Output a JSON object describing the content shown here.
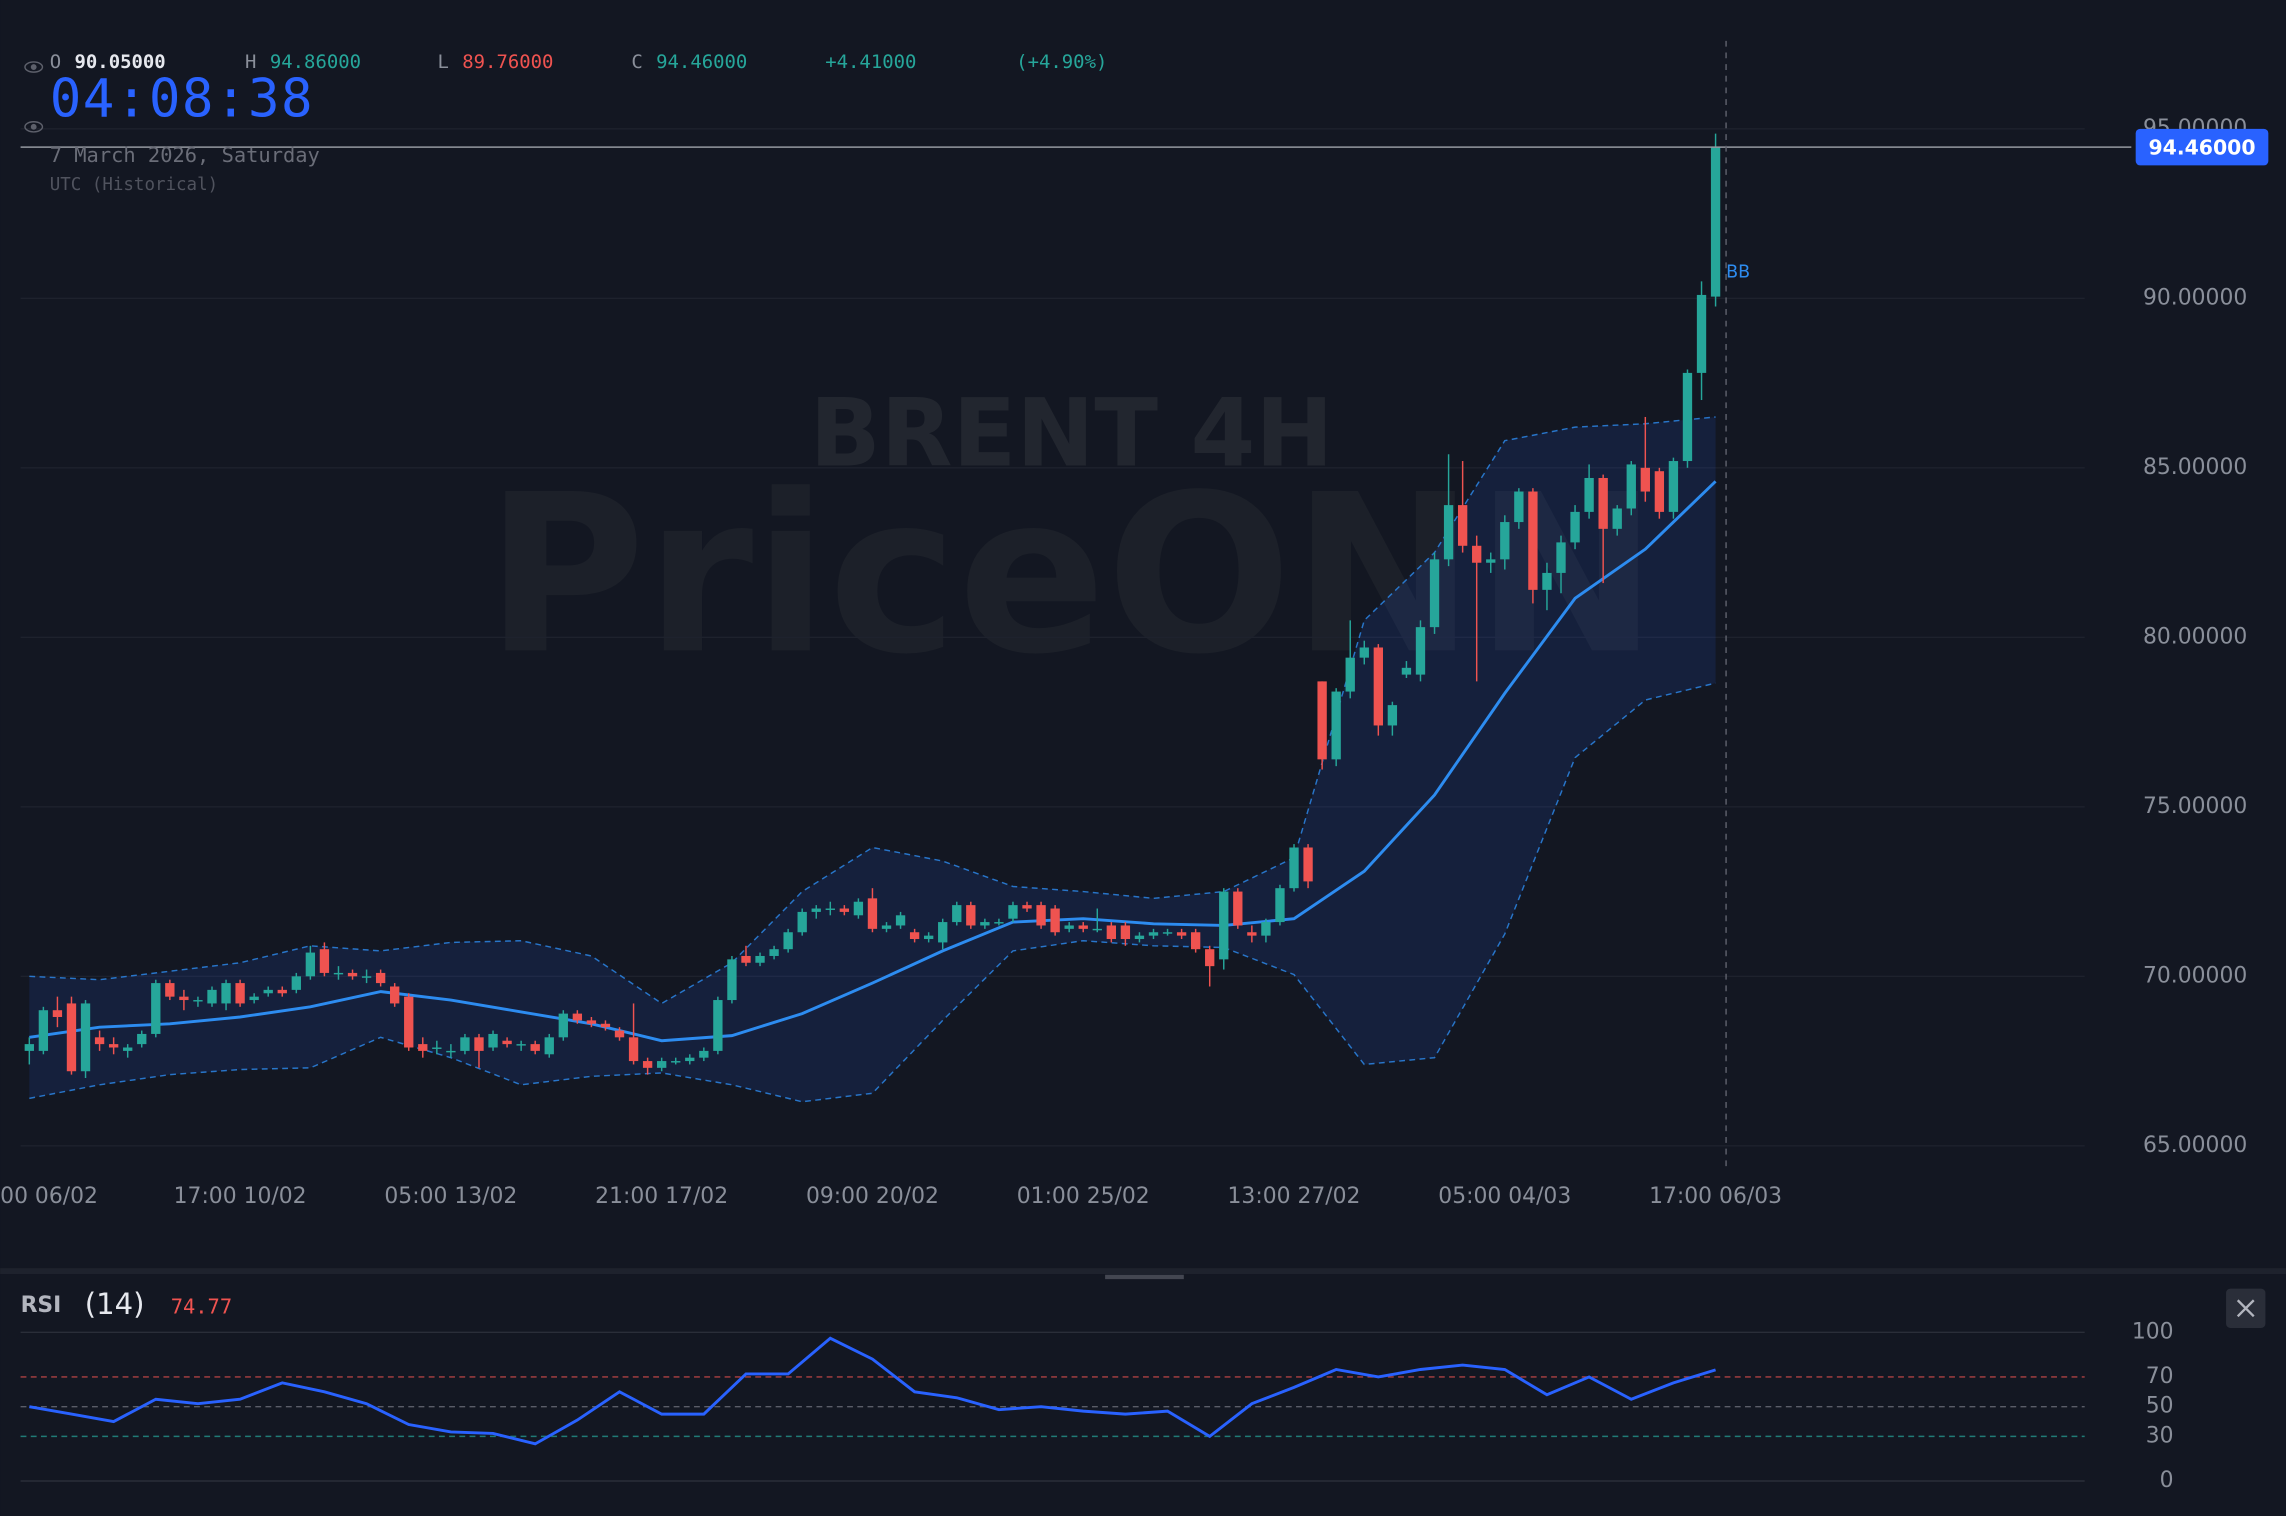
{
  "header": {
    "ohlc": [
      {
        "key": "O",
        "value": "90.05000",
        "color": "#e6e8ee"
      },
      {
        "key": "H",
        "value": "94.86000",
        "color": "#26a69a"
      },
      {
        "key": "L",
        "value": "89.76000",
        "color": "#ef5350"
      },
      {
        "key": "C",
        "value": "94.46000",
        "color": "#26a69a"
      }
    ],
    "change": "+4.41000",
    "change_pct": "(+4.90%)",
    "clock": "04:08:38",
    "date": "7 March 2026, Saturday",
    "timezone": "UTC (Historical)",
    "brand": "PriceONN",
    "last_price": "94.46000"
  },
  "chart_data": [
    {
      "type": "candlestick",
      "title": "BRENT 4H",
      "categories": [
        "00 06/02",
        null,
        null,
        null,
        null,
        null,
        null,
        null,
        null,
        null,
        null,
        null,
        null,
        null,
        null,
        "17:00 10/02",
        null,
        null,
        null,
        null,
        null,
        null,
        null,
        null,
        null,
        null,
        null,
        null,
        null,
        null,
        "05:00 13/02",
        null,
        null,
        null,
        null,
        null,
        null,
        null,
        null,
        null,
        null,
        null,
        null,
        null,
        null,
        "21:00 17/02",
        null,
        null,
        null,
        null,
        null,
        null,
        null,
        null,
        null,
        null,
        null,
        null,
        null,
        null,
        "09:00 20/02",
        null,
        null,
        null,
        null,
        null,
        null,
        null,
        null,
        null,
        null,
        null,
        null,
        null,
        null,
        "01:00 25/02",
        null,
        null,
        null,
        null,
        null,
        null,
        null,
        null,
        null,
        null,
        null,
        null,
        null,
        null,
        "13:00 27/02",
        null,
        null,
        null,
        null,
        null,
        null,
        null,
        null,
        null,
        null,
        null,
        null,
        null,
        null,
        "05:00 04/03",
        null,
        null,
        null,
        null,
        null,
        null,
        null,
        null,
        null,
        null,
        null,
        null,
        null,
        null,
        "17:00 06/03"
      ],
      "candles": [
        [
          67.8,
          68.2,
          67.4,
          68.0
        ],
        [
          67.8,
          69.1,
          67.7,
          69.0
        ],
        [
          69.0,
          69.4,
          68.5,
          68.8
        ],
        [
          69.2,
          69.4,
          67.1,
          67.2
        ],
        [
          67.2,
          69.3,
          67.0,
          69.2
        ],
        [
          68.2,
          68.4,
          67.8,
          68.0
        ],
        [
          68.0,
          68.2,
          67.7,
          67.9
        ],
        [
          67.8,
          68.0,
          67.6,
          67.9
        ],
        [
          68.0,
          68.4,
          67.9,
          68.3
        ],
        [
          68.3,
          69.9,
          68.2,
          69.8
        ],
        [
          69.8,
          69.9,
          69.3,
          69.4
        ],
        [
          69.4,
          69.6,
          69.0,
          69.3
        ],
        [
          69.3,
          69.4,
          69.1,
          69.3
        ],
        [
          69.2,
          69.7,
          69.1,
          69.6
        ],
        [
          69.2,
          69.9,
          69.0,
          69.8
        ],
        [
          69.8,
          69.9,
          69.1,
          69.2
        ],
        [
          69.3,
          69.5,
          69.2,
          69.4
        ],
        [
          69.5,
          69.7,
          69.4,
          69.6
        ],
        [
          69.6,
          69.7,
          69.4,
          69.5
        ],
        [
          69.6,
          70.1,
          69.5,
          70.0
        ],
        [
          70.0,
          70.9,
          69.9,
          70.7
        ],
        [
          70.8,
          71.0,
          70.0,
          70.1
        ],
        [
          70.1,
          70.3,
          69.9,
          70.1
        ],
        [
          70.1,
          70.2,
          69.9,
          70.0
        ],
        [
          70.0,
          70.2,
          69.8,
          70.0
        ],
        [
          70.1,
          70.2,
          69.7,
          69.8
        ],
        [
          69.7,
          69.8,
          69.1,
          69.2
        ],
        [
          69.4,
          69.5,
          67.8,
          67.9
        ],
        [
          68.0,
          68.2,
          67.6,
          67.8
        ],
        [
          67.9,
          68.1,
          67.7,
          67.9
        ],
        [
          67.8,
          68.0,
          67.6,
          67.8
        ],
        [
          67.8,
          68.3,
          67.7,
          68.2
        ],
        [
          68.2,
          68.3,
          67.3,
          67.8
        ],
        [
          67.9,
          68.4,
          67.8,
          68.3
        ],
        [
          68.1,
          68.2,
          67.9,
          68.0
        ],
        [
          68.0,
          68.1,
          67.8,
          68.0
        ],
        [
          68.0,
          68.1,
          67.7,
          67.8
        ],
        [
          67.7,
          68.3,
          67.6,
          68.2
        ],
        [
          68.2,
          69.0,
          68.1,
          68.9
        ],
        [
          68.9,
          69.0,
          68.6,
          68.7
        ],
        [
          68.7,
          68.8,
          68.5,
          68.6
        ],
        [
          68.6,
          68.7,
          68.4,
          68.5
        ],
        [
          68.4,
          68.5,
          68.1,
          68.2
        ],
        [
          68.2,
          69.2,
          67.4,
          67.5
        ],
        [
          67.5,
          67.6,
          67.1,
          67.3
        ],
        [
          67.3,
          67.6,
          67.2,
          67.5
        ],
        [
          67.5,
          67.6,
          67.4,
          67.5
        ],
        [
          67.5,
          67.7,
          67.4,
          67.6
        ],
        [
          67.6,
          67.9,
          67.5,
          67.8
        ],
        [
          67.8,
          69.4,
          67.7,
          69.3
        ],
        [
          69.3,
          70.6,
          69.2,
          70.5
        ],
        [
          70.6,
          70.9,
          70.3,
          70.4
        ],
        [
          70.4,
          70.7,
          70.3,
          70.6
        ],
        [
          70.6,
          70.9,
          70.5,
          70.8
        ],
        [
          70.8,
          71.4,
          70.7,
          71.3
        ],
        [
          71.3,
          72.0,
          71.2,
          71.9
        ],
        [
          71.9,
          72.1,
          71.7,
          72.0
        ],
        [
          72.0,
          72.2,
          71.8,
          72.0
        ],
        [
          72.0,
          72.1,
          71.8,
          71.9
        ],
        [
          71.8,
          72.3,
          71.7,
          72.2
        ],
        [
          72.3,
          72.6,
          71.3,
          71.4
        ],
        [
          71.4,
          71.6,
          71.3,
          71.5
        ],
        [
          71.5,
          71.9,
          71.4,
          71.8
        ],
        [
          71.3,
          71.4,
          71.0,
          71.1
        ],
        [
          71.1,
          71.3,
          71.0,
          71.2
        ],
        [
          71.0,
          71.7,
          70.8,
          71.6
        ],
        [
          71.6,
          72.2,
          71.5,
          72.1
        ],
        [
          72.1,
          72.2,
          71.4,
          71.5
        ],
        [
          71.5,
          71.7,
          71.4,
          71.6
        ],
        [
          71.6,
          71.7,
          71.5,
          71.6
        ],
        [
          71.7,
          72.2,
          71.6,
          72.1
        ],
        [
          72.1,
          72.2,
          71.9,
          72.0
        ],
        [
          72.1,
          72.2,
          71.4,
          71.5
        ],
        [
          72.0,
          72.1,
          71.2,
          71.3
        ],
        [
          71.4,
          71.6,
          71.3,
          71.5
        ],
        [
          71.5,
          71.6,
          71.3,
          71.4
        ],
        [
          71.4,
          72.0,
          71.3,
          71.4
        ],
        [
          71.5,
          71.6,
          71.0,
          71.1
        ],
        [
          71.5,
          71.6,
          70.9,
          71.1
        ],
        [
          71.1,
          71.3,
          71.0,
          71.2
        ],
        [
          71.2,
          71.4,
          71.1,
          71.3
        ],
        [
          71.3,
          71.4,
          71.2,
          71.3
        ],
        [
          71.3,
          71.4,
          71.1,
          71.2
        ],
        [
          71.3,
          71.4,
          70.7,
          70.8
        ],
        [
          70.8,
          70.9,
          69.7,
          70.3
        ],
        [
          70.5,
          72.6,
          70.2,
          72.5
        ],
        [
          72.5,
          72.6,
          71.4,
          71.5
        ],
        [
          71.3,
          71.5,
          71.0,
          71.2
        ],
        [
          71.2,
          71.7,
          71.0,
          71.6
        ],
        [
          71.6,
          72.7,
          71.5,
          72.6
        ],
        [
          72.6,
          73.9,
          72.5,
          73.8
        ],
        [
          73.8,
          73.9,
          72.6,
          72.8
        ],
        [
          78.7,
          78.7,
          76.1,
          76.4
        ],
        [
          76.4,
          78.5,
          76.2,
          78.4
        ],
        [
          78.4,
          80.5,
          78.2,
          79.4
        ],
        [
          79.4,
          79.9,
          79.2,
          79.7
        ],
        [
          79.7,
          79.8,
          77.1,
          77.4
        ],
        [
          77.4,
          78.1,
          77.1,
          78.0
        ],
        [
          78.9,
          79.3,
          78.8,
          79.1
        ],
        [
          78.9,
          80.5,
          78.7,
          80.3
        ],
        [
          80.3,
          82.5,
          80.1,
          82.3
        ],
        [
          82.3,
          85.4,
          82.1,
          83.9
        ],
        [
          83.9,
          85.2,
          82.5,
          82.7
        ],
        [
          82.7,
          83.0,
          78.7,
          82.2
        ],
        [
          82.2,
          82.5,
          81.9,
          82.3
        ],
        [
          82.3,
          83.6,
          82.0,
          83.4
        ],
        [
          83.4,
          84.4,
          83.2,
          84.3
        ],
        [
          84.3,
          84.4,
          81.0,
          81.4
        ],
        [
          81.4,
          82.2,
          80.8,
          81.9
        ],
        [
          81.9,
          83.0,
          81.3,
          82.8
        ],
        [
          82.8,
          83.9,
          82.6,
          83.7
        ],
        [
          83.7,
          85.1,
          83.5,
          84.7
        ],
        [
          84.7,
          84.8,
          81.6,
          83.2
        ],
        [
          83.2,
          83.9,
          83.0,
          83.8
        ],
        [
          83.8,
          85.2,
          83.6,
          85.1
        ],
        [
          85.0,
          86.5,
          84.0,
          84.3
        ],
        [
          84.9,
          85.0,
          83.5,
          83.7
        ],
        [
          83.7,
          85.3,
          83.5,
          85.2
        ],
        [
          85.2,
          87.9,
          85.0,
          87.8
        ],
        [
          87.8,
          90.5,
          87.0,
          90.1
        ],
        [
          90.05,
          94.86,
          89.76,
          94.46
        ]
      ],
      "up_color": "#26a69a",
      "down_color": "#ef5350",
      "ylim": [
        64.4,
        98.8
      ],
      "yticks": [
        {
          "value": 65,
          "label": "65.00000"
        },
        {
          "value": 70,
          "label": "70.00000"
        },
        {
          "value": 75,
          "label": "75.00000"
        },
        {
          "value": 80,
          "label": "80.00000"
        },
        {
          "value": 85,
          "label": "85.00000"
        },
        {
          "value": 90,
          "label": "90.00000"
        },
        {
          "value": 95,
          "label": "95.00000"
        }
      ],
      "grid": true,
      "indicator": {
        "name": "BB",
        "color": "#2d8cf0",
        "x": [
          0,
          5,
          10,
          15,
          20,
          25,
          30,
          35,
          40,
          45,
          50,
          55,
          60,
          65,
          70,
          75,
          80,
          85,
          90,
          95,
          100,
          105,
          110,
          115,
          120
        ],
        "upper": [
          70.0,
          69.9,
          70.15,
          70.4,
          70.9,
          70.75,
          71.0,
          71.05,
          70.6,
          69.2,
          70.4,
          72.5,
          73.8,
          73.4,
          72.65,
          72.5,
          72.3,
          72.5,
          73.5,
          80.5,
          82.5,
          85.8,
          86.2,
          86.3,
          86.5
        ],
        "middle": [
          68.2,
          68.5,
          68.6,
          68.8,
          69.1,
          69.55,
          69.3,
          68.95,
          68.6,
          68.1,
          68.25,
          68.9,
          69.8,
          70.75,
          71.6,
          71.7,
          71.55,
          71.5,
          71.7,
          73.1,
          75.35,
          78.35,
          81.15,
          82.6,
          84.6
        ],
        "lower": [
          66.4,
          66.8,
          67.1,
          67.25,
          67.3,
          68.2,
          67.6,
          66.8,
          67.05,
          67.15,
          66.8,
          66.3,
          66.55,
          68.7,
          70.75,
          71.05,
          70.9,
          70.85,
          70.05,
          67.4,
          67.6,
          71.25,
          76.45,
          78.15,
          78.65
        ]
      }
    },
    {
      "type": "line",
      "title": "RSI",
      "subtitle": "(14)",
      "color": "#2962ff",
      "x": [
        0,
        3,
        6,
        9,
        12,
        15,
        18,
        21,
        24,
        27,
        30,
        33,
        36,
        39,
        42,
        45,
        48,
        51,
        54,
        57,
        60,
        63,
        66,
        69,
        72,
        75,
        78,
        81,
        84,
        87,
        90,
        93,
        96,
        99,
        102,
        105,
        108,
        111,
        114,
        117,
        120
      ],
      "values": [
        50,
        45,
        40,
        55,
        52,
        55,
        66,
        60,
        52,
        38,
        33,
        32,
        25,
        41,
        60,
        45,
        45,
        72,
        72,
        96,
        82,
        60,
        56,
        48,
        50,
        47,
        45,
        47,
        30,
        52,
        63,
        75,
        70,
        75,
        78,
        75,
        58,
        70,
        55,
        66,
        74.77
      ],
      "ylim": [
        0,
        100
      ],
      "yticks": [
        0,
        30,
        50,
        70,
        100
      ],
      "levels": [
        70,
        50,
        30
      ],
      "level_colors": [
        "#ef5350",
        "#787b86",
        "#26a69a"
      ]
    }
  ]
}
